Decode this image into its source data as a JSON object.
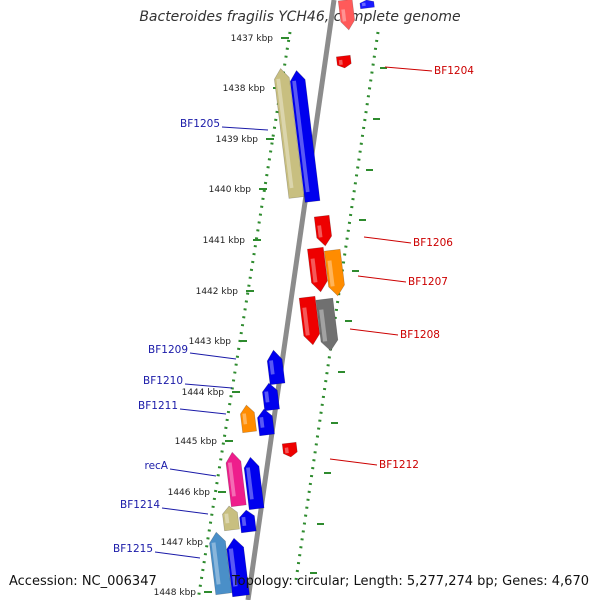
{
  "title": "Bacteroides fragilis YCH46, complete genome",
  "accession": "Accession: NC_006347",
  "summary": "Topology: circular; Length: 5,277,274 bp; Genes: 4,670",
  "colors": {
    "backbone": "#8c8c8c",
    "track_dots": "#2e8b2e",
    "left_label": "#1a1aa8",
    "right_label": "#cc0000",
    "ruler_text": "#222222"
  },
  "ruler": [
    {
      "label": "1437 kbp"
    },
    {
      "label": "1438 kbp"
    },
    {
      "label": "1439 kbp"
    },
    {
      "label": "1440 kbp"
    },
    {
      "label": "1441 kbp"
    },
    {
      "label": "1442 kbp"
    },
    {
      "label": "1443 kbp"
    },
    {
      "label": "1444 kbp"
    },
    {
      "label": "1445 kbp"
    },
    {
      "label": "1446 kbp"
    },
    {
      "label": "1447 kbp"
    },
    {
      "label": "1448 kbp"
    }
  ],
  "gene_labels": [
    {
      "text": "BF1204",
      "side": "right"
    },
    {
      "text": "BF1205",
      "side": "left"
    },
    {
      "text": "BF1206",
      "side": "right"
    },
    {
      "text": "BF1207",
      "side": "right"
    },
    {
      "text": "BF1208",
      "side": "right"
    },
    {
      "text": "BF1209",
      "side": "left"
    },
    {
      "text": "BF1210",
      "side": "left"
    },
    {
      "text": "BF1211",
      "side": "left"
    },
    {
      "text": "BF1212",
      "side": "right"
    },
    {
      "text": "recA",
      "side": "left"
    },
    {
      "text": "BF1214",
      "side": "left"
    },
    {
      "text": "BF1215",
      "side": "left"
    }
  ],
  "features": [
    {
      "color": "#ff5a5a",
      "strand": "reverse"
    },
    {
      "color": "#1a1aff",
      "strand": "forward"
    },
    {
      "color": "#ee0000",
      "strand": "reverse"
    },
    {
      "color": "#c8bf80",
      "strand": "forward"
    },
    {
      "color": "#0000ee",
      "strand": "forward"
    },
    {
      "color": "#ee0000",
      "strand": "reverse"
    },
    {
      "color": "#ee0000",
      "strand": "reverse"
    },
    {
      "color": "#ff8c00",
      "strand": "reverse"
    },
    {
      "color": "#ee0000",
      "strand": "reverse"
    },
    {
      "color": "#707070",
      "strand": "reverse"
    },
    {
      "color": "#0000ee",
      "strand": "forward"
    },
    {
      "color": "#0000ee",
      "strand": "forward"
    },
    {
      "color": "#ff8c00",
      "strand": "forward"
    },
    {
      "color": "#0000ee",
      "strand": "forward"
    },
    {
      "color": "#ee0000",
      "strand": "reverse"
    },
    {
      "color": "#ee1e8c",
      "strand": "forward"
    },
    {
      "color": "#0000ee",
      "strand": "forward"
    },
    {
      "color": "#c8bf80",
      "strand": "forward"
    },
    {
      "color": "#0000ee",
      "strand": "forward"
    },
    {
      "color": "#4a8fc8",
      "strand": "forward"
    },
    {
      "color": "#0000ee",
      "strand": "forward"
    }
  ]
}
